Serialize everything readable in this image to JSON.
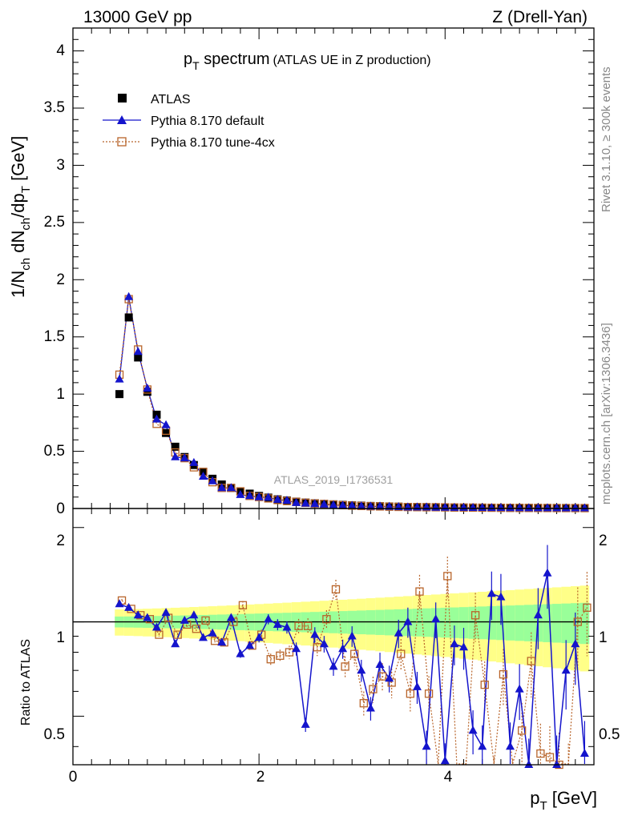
{
  "header": {
    "energy": "13000 GeV pp",
    "process": "Z (Drell-Yan)"
  },
  "side": {
    "rivet": "Rivet 3.1.10, ≥ 300k events",
    "source": "mcplots.cern.ch [arXiv:1306.3436]"
  },
  "colors": {
    "data": "#000000",
    "default": "#1414cc",
    "tune": "#b8642a",
    "band_inner": "#99ff99",
    "band_outer": "#ffff88"
  },
  "chart_data": {
    "type": "line",
    "title_main": "p",
    "title_sub": "T",
    "title_rest": " spectrum",
    "title_small": "(ATLAS UE in Z production)",
    "analysis": "ATLAS_2019_I1736531",
    "ylabel": "1/N_ch dN_ch/dp_T [GeV]",
    "xlabel": "p_T [GeV]",
    "ratio_ylabel": "Ratio to ATLAS",
    "xlim": [
      0,
      5.6
    ],
    "ylim": [
      0,
      4.2
    ],
    "ratio_ylim": [
      0.35,
      2.3
    ],
    "x_ticks": [
      "0",
      "2",
      "4"
    ],
    "y_ticks": [
      "0",
      "0.5",
      "1",
      "1.5",
      "2",
      "2.5",
      "3",
      "3.5",
      "4"
    ],
    "ratio_ticks": [
      "0.5",
      "1",
      "2"
    ],
    "legend": [
      "ATLAS",
      "Pythia 8.170 default",
      "Pythia 8.170 tune-4cx"
    ],
    "x": [
      0.5,
      0.6,
      0.7,
      0.8,
      0.9,
      1.0,
      1.1,
      1.2,
      1.3,
      1.4,
      1.5,
      1.6,
      1.7,
      1.8,
      1.9,
      2.0,
      2.1,
      2.2,
      2.3,
      2.4,
      2.5,
      2.6,
      2.7,
      2.8,
      2.9,
      3.0,
      3.1,
      3.2,
      3.3,
      3.4,
      3.5,
      3.6,
      3.7,
      3.8,
      3.9,
      4.0,
      4.1,
      4.2,
      4.3,
      4.4,
      4.5,
      4.6,
      4.7,
      4.8,
      4.9,
      5.0,
      5.1,
      5.2,
      5.3,
      5.4,
      5.5
    ],
    "series": [
      {
        "name": "ATLAS",
        "values": [
          1.0,
          1.67,
          1.32,
          1.02,
          0.82,
          0.66,
          0.54,
          0.45,
          0.38,
          0.32,
          0.26,
          0.21,
          0.18,
          0.15,
          0.13,
          0.11,
          0.095,
          0.08,
          0.07,
          0.06,
          0.052,
          0.046,
          0.04,
          0.036,
          0.032,
          0.028,
          0.025,
          0.022,
          0.02,
          0.018,
          0.016,
          0.014,
          0.013,
          0.012,
          0.011,
          0.01,
          0.009,
          0.0085,
          0.008,
          0.0075,
          0.007,
          0.0065,
          0.006,
          0.0056,
          0.0053,
          0.005,
          0.0047,
          0.0044,
          0.0042,
          0.004,
          0.0038
        ]
      },
      {
        "name": "Pythia 8.170 default",
        "values": [
          1.13,
          1.85,
          1.37,
          1.05,
          0.78,
          0.73,
          0.45,
          0.44,
          0.4,
          0.28,
          0.24,
          0.18,
          0.18,
          0.12,
          0.11,
          0.1,
          0.096,
          0.078,
          0.07,
          0.05,
          0.045,
          0.04,
          0.036,
          0.03,
          0.027,
          0.025,
          0.021,
          0.018,
          0.019,
          0.017,
          0.014,
          0.011,
          0.011,
          0.011,
          0.009,
          0.009,
          0.008,
          0.0076,
          0.0072,
          0.0067,
          0.0063,
          0.0058,
          0.0054,
          0.005,
          0.0048,
          0.0045,
          0.0043,
          0.004,
          0.0038,
          0.0036,
          0.0034
        ]
      },
      {
        "name": "Pythia 8.170 tune-4cx",
        "values": [
          1.17,
          1.83,
          1.39,
          1.04,
          0.74,
          0.68,
          0.49,
          0.44,
          0.36,
          0.32,
          0.23,
          0.18,
          0.18,
          0.15,
          0.11,
          0.1,
          0.088,
          0.074,
          0.065,
          0.058,
          0.05,
          0.044,
          0.04,
          0.035,
          0.029,
          0.025,
          0.022,
          0.019,
          0.018,
          0.016,
          0.014,
          0.013,
          0.012,
          0.011,
          0.011,
          0.01,
          0.009,
          0.0082,
          0.0076,
          0.0071,
          0.0066,
          0.0061,
          0.0056,
          0.0052,
          0.0049,
          0.0046,
          0.0043,
          0.004,
          0.0038,
          0.0036,
          0.0034
        ]
      }
    ],
    "ratio_series": [
      {
        "name": "Pythia 8.170 default",
        "values": [
          1.14,
          1.11,
          1.05,
          1.03,
          0.96,
          1.07,
          0.85,
          1.01,
          1.05,
          0.89,
          0.92,
          0.86,
          1.03,
          0.79,
          0.84,
          0.89,
          1.02,
          0.98,
          0.96,
          0.82,
          0.47,
          0.91,
          0.85,
          0.72,
          0.82,
          0.9,
          0.7,
          0.53,
          0.73,
          0.66,
          0.92,
          1.0,
          0.62,
          0.4,
          1.02,
          0.36,
          0.85,
          0.83,
          0.45,
          0.4,
          1.23,
          1.2,
          0.4,
          0.61,
          0.35,
          1.05,
          1.43,
          0.35,
          0.7,
          0.85,
          0.38
        ]
      },
      {
        "name": "Pythia 8.170 tune-4cx",
        "values": [
          1.17,
          1.1,
          1.05,
          1.02,
          0.91,
          1.03,
          0.91,
          0.98,
          0.95,
          1.01,
          0.87,
          0.86,
          1.0,
          1.13,
          0.84,
          0.91,
          0.76,
          0.78,
          0.8,
          0.97,
          0.97,
          0.83,
          1.02,
          1.27,
          0.72,
          0.79,
          0.55,
          0.61,
          0.67,
          0.64,
          0.79,
          0.59,
          1.25,
          0.59,
          0.31,
          1.4,
          0.3,
          0.31,
          1.05,
          0.63,
          0.31,
          0.68,
          0.3,
          0.45,
          0.75,
          0.38,
          0.37,
          0.35,
          0.32,
          1.0,
          1.11
        ]
      }
    ]
  }
}
